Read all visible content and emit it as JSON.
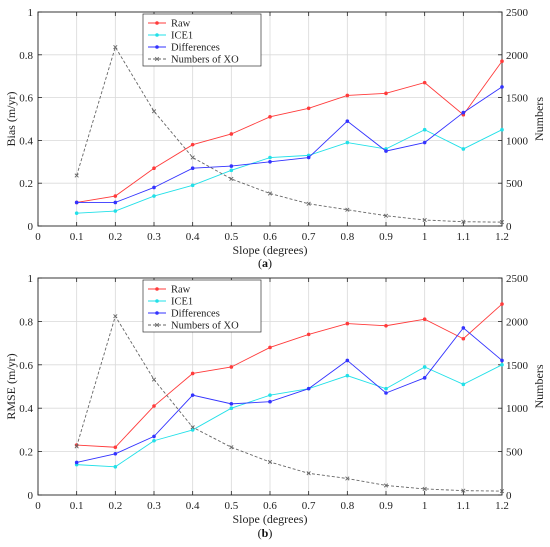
{
  "colors": {
    "raw": "#ff3b3b",
    "ice1": "#22e0e8",
    "differences": "#3333ff",
    "xo": "#666666",
    "grid": "#d9d9d9"
  },
  "chart_data": [
    {
      "type": "line",
      "panel_label": "a",
      "xlabel": "Slope  (degrees)",
      "ylabel": "Bias (m/yr)",
      "y2label": "Numbers",
      "xlim": [
        0,
        1.2
      ],
      "ylim": [
        0,
        1
      ],
      "y2lim": [
        0,
        2500
      ],
      "x": [
        0.1,
        0.2,
        0.3,
        0.4,
        0.5,
        0.6,
        0.7,
        0.8,
        0.9,
        1.0,
        1.1,
        1.2
      ],
      "x_ticks": [
        "0",
        "0.1",
        "0.2",
        "0.3",
        "0.4",
        "0.5",
        "0.6",
        "0.7",
        "0.8",
        "0.9",
        "1",
        "1.1",
        "1.2"
      ],
      "y_ticks": [
        "0",
        "0.2",
        "0.4",
        "0.6",
        "0.8",
        "1"
      ],
      "y2_ticks": [
        "0",
        "500",
        "1000",
        "1500",
        "2000",
        "2500"
      ],
      "grid": true,
      "legend_position": "top-left",
      "series": [
        {
          "name": "Raw",
          "axis": "left",
          "color_key": "raw",
          "marker": "dot",
          "dashed": false,
          "values": [
            0.11,
            0.14,
            0.27,
            0.38,
            0.43,
            0.51,
            0.55,
            0.61,
            0.62,
            0.67,
            0.52,
            0.77
          ]
        },
        {
          "name": "ICE1",
          "axis": "left",
          "color_key": "ice1",
          "marker": "dot",
          "dashed": false,
          "values": [
            0.06,
            0.07,
            0.14,
            0.19,
            0.26,
            0.32,
            0.33,
            0.39,
            0.36,
            0.45,
            0.36,
            0.45
          ]
        },
        {
          "name": "Differences",
          "axis": "left",
          "color_key": "differences",
          "marker": "dot",
          "dashed": false,
          "values": [
            0.11,
            0.11,
            0.18,
            0.27,
            0.28,
            0.3,
            0.32,
            0.49,
            0.35,
            0.39,
            0.53,
            0.65
          ]
        },
        {
          "name": "Numbers of XO",
          "axis": "right",
          "color_key": "xo",
          "marker": "x",
          "dashed": true,
          "values": [
            590,
            2090,
            1340,
            800,
            550,
            380,
            260,
            190,
            120,
            70,
            50,
            45
          ]
        }
      ]
    },
    {
      "type": "line",
      "panel_label": "b",
      "xlabel": "Slope  (degrees)",
      "ylabel": "RMSE  (m/yr)",
      "y2label": "Numbers",
      "xlim": [
        0,
        1.2
      ],
      "ylim": [
        0,
        1
      ],
      "y2lim": [
        0,
        2500
      ],
      "x": [
        0.1,
        0.2,
        0.3,
        0.4,
        0.5,
        0.6,
        0.7,
        0.8,
        0.9,
        1.0,
        1.1,
        1.2
      ],
      "x_ticks": [
        "0",
        "0.1",
        "0.2",
        "0.3",
        "0.4",
        "0.5",
        "0.6",
        "0.7",
        "0.8",
        "0.9",
        "1",
        "1.1",
        "1.2"
      ],
      "y_ticks": [
        "0",
        "0.2",
        "0.4",
        "0.6",
        "0.8",
        "1"
      ],
      "y2_ticks": [
        "0",
        "500",
        "1000",
        "1500",
        "2000",
        "2500"
      ],
      "grid": true,
      "legend_position": "top-left",
      "series": [
        {
          "name": "Raw",
          "axis": "left",
          "color_key": "raw",
          "marker": "dot",
          "dashed": false,
          "values": [
            0.23,
            0.22,
            0.41,
            0.56,
            0.59,
            0.68,
            0.74,
            0.79,
            0.78,
            0.81,
            0.72,
            0.88
          ]
        },
        {
          "name": "ICE1",
          "axis": "left",
          "color_key": "ice1",
          "marker": "dot",
          "dashed": false,
          "values": [
            0.14,
            0.13,
            0.25,
            0.3,
            0.4,
            0.46,
            0.49,
            0.55,
            0.49,
            0.59,
            0.51,
            0.6
          ]
        },
        {
          "name": "Differences",
          "axis": "left",
          "color_key": "differences",
          "marker": "dot",
          "dashed": false,
          "values": [
            0.15,
            0.19,
            0.27,
            0.46,
            0.42,
            0.43,
            0.49,
            0.62,
            0.47,
            0.54,
            0.77,
            0.62
          ]
        },
        {
          "name": "Numbers of XO",
          "axis": "right",
          "color_key": "xo",
          "marker": "x",
          "dashed": true,
          "values": [
            560,
            2060,
            1330,
            780,
            550,
            380,
            250,
            190,
            110,
            70,
            50,
            45
          ]
        }
      ]
    }
  ]
}
